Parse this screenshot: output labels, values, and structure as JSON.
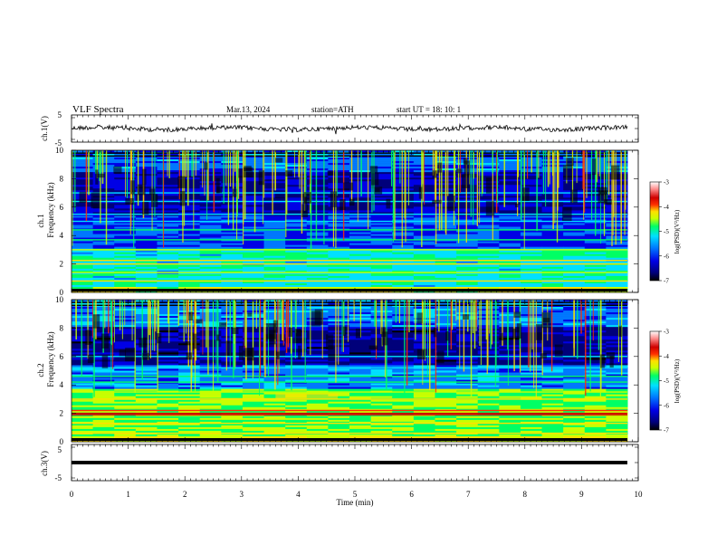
{
  "header": {
    "title": "VLF  Spectra",
    "date": "Mar.13, 2024",
    "station": "station=ATH",
    "start": "start  UT  =    18: 10: 1"
  },
  "chart_data": [
    {
      "type": "line",
      "name": "ch1-waveform",
      "ylabel": "ch.1(V)",
      "ylim": [
        -5,
        5
      ],
      "yticks": [
        "5",
        "-5"
      ],
      "xlim": [
        0,
        10
      ]
    },
    {
      "type": "heatmap",
      "name": "ch1-spectrogram",
      "ylabel": "ch.1\nFrequency  (kHz)",
      "ylim": [
        0,
        10
      ],
      "yticks": [
        "0",
        "2",
        "4",
        "6",
        "8",
        "10"
      ],
      "xlim": [
        0,
        10
      ],
      "colorbar": {
        "label": "log(PSD)(V²/Hz)",
        "ticks": [
          "-3",
          "-4",
          "-5",
          "-6",
          "-7"
        ],
        "range": [
          -7,
          -3
        ]
      }
    },
    {
      "type": "heatmap",
      "name": "ch2-spectrogram",
      "ylabel": "ch.2\nFrequency  (kHz)",
      "ylim": [
        0,
        10
      ],
      "yticks": [
        "0",
        "2",
        "4",
        "6",
        "8",
        "10"
      ],
      "xlim": [
        0,
        10
      ],
      "colorbar": {
        "label": "log(PSD)(V²/Hz)",
        "ticks": [
          "-3",
          "-4",
          "-5",
          "-6",
          "-7"
        ],
        "range": [
          -7,
          -3
        ]
      }
    },
    {
      "type": "line",
      "name": "ch3-waveform",
      "ylabel": "ch.3(V)",
      "ylim": [
        -5,
        5
      ],
      "yticks": [
        "5",
        "-5"
      ],
      "xlim": [
        0,
        10
      ]
    }
  ],
  "xaxis": {
    "label": "Time  (min)",
    "ticks": [
      "0",
      "1",
      "2",
      "3",
      "4",
      "5",
      "6",
      "7",
      "8",
      "9",
      "10"
    ]
  },
  "colors": {
    "colormap": [
      "#000000",
      "#00007a",
      "#0000e6",
      "#0078ff",
      "#00e0ff",
      "#00ff64",
      "#c8ff00",
      "#ffe000",
      "#ff3000",
      "#d00000",
      "#ff9090",
      "#ffffff"
    ]
  }
}
